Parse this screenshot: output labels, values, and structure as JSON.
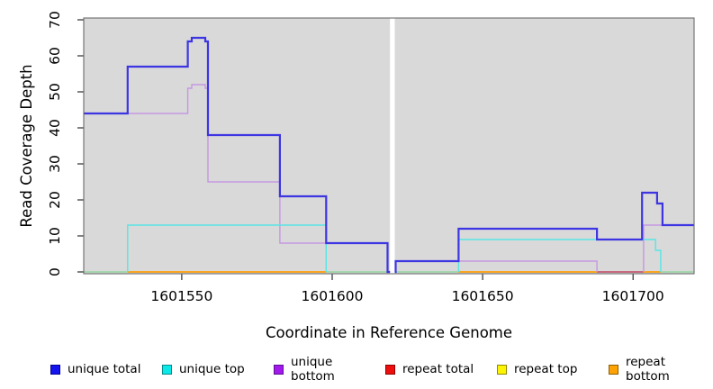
{
  "axes": {
    "x_label": "Coordinate in Reference Genome",
    "y_label": "Read Coverage Depth",
    "x_ticks": [
      {
        "value": 1601550,
        "label": "1601550"
      },
      {
        "value": 1601600,
        "label": "1601600"
      },
      {
        "value": 1601650,
        "label": "1601650"
      },
      {
        "value": 1601700,
        "label": "1601700"
      }
    ],
    "y_ticks": [
      {
        "value": 0,
        "label": "0"
      },
      {
        "value": 10,
        "label": "10"
      },
      {
        "value": 20,
        "label": "20"
      },
      {
        "value": 30,
        "label": "30"
      },
      {
        "value": 40,
        "label": "40"
      },
      {
        "value": 50,
        "label": "50"
      },
      {
        "value": 60,
        "label": "60"
      },
      {
        "value": 70,
        "label": "70"
      }
    ]
  },
  "legend": {
    "items": [
      {
        "label": "unique total",
        "fill": "#1414ee",
        "border": "#00009a"
      },
      {
        "label": "unique top",
        "fill": "#0ae8e8",
        "border": "#068d8d"
      },
      {
        "label": "unique bottom",
        "fill": "#a318ec",
        "border": "#5c0d92"
      },
      {
        "label": "repeat total",
        "fill": "#ee0e0e",
        "border": "#8f0000"
      },
      {
        "label": "repeat top",
        "fill": "#fdf403",
        "border": "#8d8a06"
      },
      {
        "label": "repeat bottom",
        "fill": "#ffa305",
        "border": "#8f5e00"
      }
    ]
  },
  "chart_data": {
    "type": "step-line",
    "title": "",
    "xlabel": "Coordinate in Reference Genome",
    "ylabel": "Read Coverage Depth",
    "xlim": [
      1601517.4,
      1601720.3
    ],
    "ylim": [
      0,
      70.5
    ],
    "gap": {
      "from": 1601619.2,
      "to": 1601620.8
    },
    "panel_color": "#d9d9d9",
    "grid": false,
    "repeat_series_depth": {
      "repeat total": 0,
      "repeat top": 0,
      "repeat bottom": 0
    },
    "series": [
      {
        "id": "unique-bottom",
        "name": "unique bottom",
        "color": "#c697e2",
        "width": 1.4,
        "polylines": [
          [
            [
              1601517.4,
              44
            ],
            [
              1601552,
              44
            ],
            [
              1601552,
              51
            ],
            [
              1601553.3,
              51
            ],
            [
              1601553.3,
              52
            ],
            [
              1601557.8,
              52
            ],
            [
              1601557.8,
              51
            ],
            [
              1601558.7,
              51
            ],
            [
              1601558.7,
              25
            ],
            [
              1601582.6,
              25
            ],
            [
              1601582.6,
              8
            ],
            [
              1601618.4,
              8
            ],
            [
              1601618.4,
              0
            ],
            [
              1601619.2,
              0
            ]
          ],
          [
            [
              1601620.8,
              0
            ],
            [
              1601621.1,
              0
            ],
            [
              1601621.1,
              3
            ],
            [
              1601688,
              3
            ],
            [
              1601688,
              0
            ]
          ],
          [
            [
              1601703.5,
              0
            ],
            [
              1601703.5,
              13
            ],
            [
              1601720.3,
              13
            ]
          ]
        ]
      },
      {
        "id": "unique-top",
        "name": "unique top",
        "color": "#58e5e5",
        "width": 1.4,
        "polylines": [
          [
            [
              1601532,
              0
            ],
            [
              1601532,
              13
            ],
            [
              1601598,
              13
            ],
            [
              1601598,
              0
            ]
          ],
          [
            [
              1601642,
              0
            ],
            [
              1601642,
              9
            ],
            [
              1601707.5,
              9
            ],
            [
              1601707.5,
              6
            ],
            [
              1601709.2,
              6
            ],
            [
              1601709.2,
              0
            ]
          ]
        ]
      },
      {
        "id": "unique-total",
        "name": "unique total",
        "color": "#3d35e2",
        "width": 2.2,
        "polylines": [
          [
            [
              1601517.4,
              44
            ],
            [
              1601532,
              44
            ],
            [
              1601532,
              57
            ],
            [
              1601552,
              57
            ],
            [
              1601552,
              64
            ],
            [
              1601553.3,
              64
            ],
            [
              1601553.3,
              65
            ],
            [
              1601557.8,
              65
            ],
            [
              1601557.8,
              64
            ],
            [
              1601558.7,
              64
            ],
            [
              1601558.7,
              38
            ],
            [
              1601582.6,
              38
            ],
            [
              1601582.6,
              21
            ],
            [
              1601598,
              21
            ],
            [
              1601598,
              8
            ],
            [
              1601618.4,
              8
            ],
            [
              1601618.4,
              0
            ],
            [
              1601619.2,
              0
            ]
          ],
          [
            [
              1601620.8,
              0
            ],
            [
              1601621.1,
              0
            ],
            [
              1601621.1,
              3
            ],
            [
              1601642,
              3
            ],
            [
              1601642,
              12
            ],
            [
              1601688,
              12
            ],
            [
              1601688,
              9
            ],
            [
              1601703,
              9
            ],
            [
              1601703,
              22
            ],
            [
              1601708,
              22
            ],
            [
              1601708,
              19
            ],
            [
              1601709.8,
              19
            ],
            [
              1601709.8,
              13
            ],
            [
              1601720.3,
              13
            ]
          ]
        ]
      }
    ],
    "baseline_segments": [
      {
        "color": "#94d5a0",
        "width": 1.4,
        "from": 1601517.4,
        "to": 1601532
      },
      {
        "color": "#ff9e08",
        "width": 1.7,
        "from": 1601532,
        "to": 1601598
      },
      {
        "color": "#94d5a0",
        "width": 1.4,
        "from": 1601598,
        "to": 1601619.2
      },
      {
        "color": "#94d5a0",
        "width": 1.4,
        "from": 1601620.8,
        "to": 1601642
      },
      {
        "color": "#ff9e08",
        "width": 1.7,
        "from": 1601642,
        "to": 1601688
      },
      {
        "color": "#c45a73",
        "width": 1.7,
        "from": 1601688,
        "to": 1601703.5
      },
      {
        "color": "#ff9e08",
        "width": 1.7,
        "from": 1601703.5,
        "to": 1601709.2
      },
      {
        "color": "#94d5a0",
        "width": 1.4,
        "from": 1601709.2,
        "to": 1601720.3
      }
    ]
  }
}
